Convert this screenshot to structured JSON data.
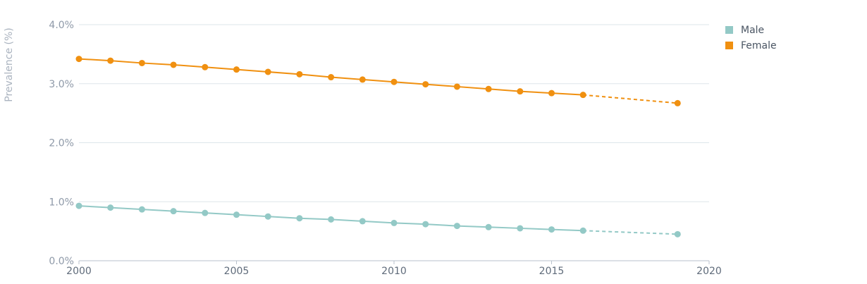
{
  "chart_data": {
    "type": "line",
    "ylabel": "Prevalence (%)",
    "ylim": [
      0,
      4
    ],
    "xlim": [
      2000,
      2020
    ],
    "y_ticks": [
      "0.0%",
      "1.0%",
      "2.0%",
      "3.0%",
      "4.0%"
    ],
    "y_tick_values": [
      0,
      1,
      2,
      3,
      4
    ],
    "x_ticks": [
      "2000",
      "2005",
      "2010",
      "2015",
      "2020"
    ],
    "x_tick_values": [
      2000,
      2005,
      2010,
      2015,
      2020
    ],
    "grid": true,
    "legend_position": "top-right",
    "series": [
      {
        "name": "Male",
        "color": "#93c9c6",
        "x": [
          2000,
          2001,
          2002,
          2003,
          2004,
          2005,
          2006,
          2007,
          2008,
          2009,
          2010,
          2011,
          2012,
          2013,
          2014,
          2015,
          2016
        ],
        "values": [
          0.93,
          0.9,
          0.87,
          0.84,
          0.81,
          0.78,
          0.75,
          0.72,
          0.7,
          0.67,
          0.64,
          0.62,
          0.59,
          0.57,
          0.55,
          0.53,
          0.51
        ],
        "projection": {
          "x": [
            2016,
            2019
          ],
          "values": [
            0.51,
            0.45
          ]
        }
      },
      {
        "name": "Female",
        "color": "#f09010",
        "x": [
          2000,
          2001,
          2002,
          2003,
          2004,
          2005,
          2006,
          2007,
          2008,
          2009,
          2010,
          2011,
          2012,
          2013,
          2014,
          2015,
          2016
        ],
        "values": [
          3.42,
          3.39,
          3.35,
          3.32,
          3.28,
          3.24,
          3.2,
          3.16,
          3.11,
          3.07,
          3.03,
          2.99,
          2.95,
          2.91,
          2.87,
          2.84,
          2.81
        ],
        "projection": {
          "x": [
            2016,
            2019
          ],
          "values": [
            2.81,
            2.67
          ]
        }
      }
    ]
  }
}
